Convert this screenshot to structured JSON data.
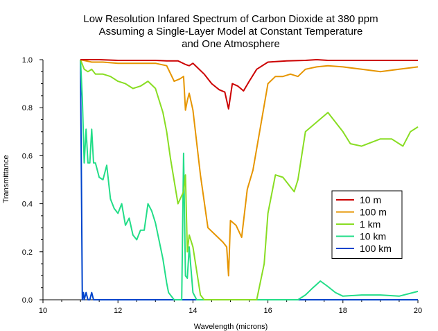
{
  "chart_data": {
    "type": "line",
    "title": [
      "Low Resolution Infared Spectrum of Carbon Dioxide at 380 ppm",
      "Assuming a Single-Layer Model at Constant Temperature",
      "and One Atmosphere"
    ],
    "xlabel": "Wavelength (microns)",
    "ylabel": "Transmittance",
    "xlim": [
      10,
      20
    ],
    "ylim": [
      0,
      1
    ],
    "xticks": [
      10,
      12,
      14,
      16,
      18,
      20
    ],
    "xtick_labels": [
      "10",
      "12",
      "14",
      "16",
      "18",
      "20"
    ],
    "yticks": [
      0,
      0.2,
      0.4,
      0.6,
      0.8,
      1.0
    ],
    "ytick_labels": [
      "0.0",
      "0.2",
      "0.4",
      "0.6",
      "0.8",
      "1.0"
    ],
    "grid": false,
    "legend_position": "right-middle",
    "series": [
      {
        "name": "10 m",
        "color": "#cc0000",
        "x": [
          11.0,
          11.5,
          12.0,
          12.5,
          13.0,
          13.3,
          13.6,
          13.8,
          13.9,
          14.0,
          14.1,
          14.3,
          14.5,
          14.7,
          14.85,
          14.95,
          15.05,
          15.2,
          15.35,
          15.5,
          15.7,
          16.0,
          16.5,
          17.0,
          17.3,
          17.6,
          18.0,
          18.5,
          19.0,
          19.5,
          20.0
        ],
        "y": [
          1.0,
          1.0,
          0.997,
          0.997,
          0.997,
          0.995,
          0.995,
          0.98,
          0.975,
          0.985,
          0.97,
          0.94,
          0.9,
          0.875,
          0.865,
          0.795,
          0.9,
          0.89,
          0.87,
          0.91,
          0.96,
          0.99,
          0.995,
          0.997,
          1.0,
          0.997,
          0.997,
          0.997,
          0.997,
          0.997,
          0.997
        ]
      },
      {
        "name": "100 m",
        "color": "#e69500",
        "x": [
          11.0,
          11.3,
          11.6,
          12.0,
          12.5,
          13.0,
          13.3,
          13.5,
          13.65,
          13.75,
          13.8,
          13.85,
          13.9,
          14.0,
          14.2,
          14.4,
          14.6,
          14.8,
          14.9,
          14.95,
          15.0,
          15.15,
          15.3,
          15.45,
          15.6,
          15.8,
          16.0,
          16.2,
          16.4,
          16.6,
          16.8,
          17.0,
          17.3,
          17.6,
          18.0,
          18.5,
          19.0,
          19.5,
          20.0
        ],
        "y": [
          1.0,
          0.99,
          0.99,
          0.985,
          0.985,
          0.985,
          0.975,
          0.91,
          0.92,
          0.93,
          0.79,
          0.83,
          0.86,
          0.79,
          0.52,
          0.3,
          0.27,
          0.24,
          0.22,
          0.1,
          0.33,
          0.31,
          0.26,
          0.46,
          0.54,
          0.72,
          0.9,
          0.93,
          0.93,
          0.94,
          0.93,
          0.96,
          0.97,
          0.975,
          0.97,
          0.96,
          0.95,
          0.96,
          0.97
        ]
      },
      {
        "name": "1 km",
        "color": "#88dd22",
        "x": [
          11.0,
          11.1,
          11.2,
          11.3,
          11.4,
          11.6,
          11.8,
          12.0,
          12.2,
          12.4,
          12.6,
          12.8,
          13.0,
          13.2,
          13.3,
          13.4,
          13.6,
          13.75,
          13.8,
          13.85,
          13.9,
          14.0,
          14.1,
          14.2,
          14.3,
          14.5,
          15.0,
          15.5,
          15.7,
          15.9,
          16.0,
          16.2,
          16.4,
          16.6,
          16.7,
          16.8,
          17.0,
          17.3,
          17.6,
          17.8,
          18.0,
          18.2,
          18.5,
          19.0,
          19.3,
          19.6,
          19.8,
          20.0
        ],
        "y": [
          1.0,
          0.96,
          0.95,
          0.96,
          0.94,
          0.94,
          0.93,
          0.91,
          0.9,
          0.88,
          0.89,
          0.91,
          0.88,
          0.78,
          0.7,
          0.59,
          0.4,
          0.45,
          0.52,
          0.2,
          0.27,
          0.22,
          0.12,
          0.02,
          0.0,
          0.0,
          0.0,
          0.0,
          0.0,
          0.15,
          0.36,
          0.52,
          0.51,
          0.47,
          0.45,
          0.5,
          0.7,
          0.74,
          0.78,
          0.74,
          0.7,
          0.65,
          0.64,
          0.67,
          0.67,
          0.64,
          0.7,
          0.72
        ]
      },
      {
        "name": "10 km",
        "color": "#22dd88",
        "x": [
          11.0,
          11.05,
          11.1,
          11.15,
          11.2,
          11.25,
          11.3,
          11.35,
          11.4,
          11.5,
          11.6,
          11.7,
          11.8,
          11.9,
          12.0,
          12.1,
          12.2,
          12.3,
          12.4,
          12.5,
          12.6,
          12.7,
          12.8,
          12.9,
          13.0,
          13.2,
          13.3,
          13.35,
          13.5,
          13.6,
          13.7,
          13.75,
          13.8,
          13.85,
          13.9,
          14.0,
          14.1,
          14.5,
          16.5,
          16.8,
          17.0,
          17.2,
          17.4,
          17.6,
          17.8,
          18.0,
          18.5,
          19.0,
          19.5,
          20.0
        ],
        "y": [
          1.0,
          0.84,
          0.57,
          0.71,
          0.57,
          0.57,
          0.71,
          0.57,
          0.57,
          0.51,
          0.5,
          0.56,
          0.42,
          0.38,
          0.36,
          0.4,
          0.31,
          0.34,
          0.27,
          0.25,
          0.29,
          0.29,
          0.4,
          0.37,
          0.32,
          0.17,
          0.07,
          0.03,
          0.0,
          0.0,
          0.0,
          0.61,
          0.1,
          0.09,
          0.22,
          0.03,
          0.0,
          0.0,
          0.0,
          0.0,
          0.02,
          0.05,
          0.078,
          0.055,
          0.03,
          0.015,
          0.02,
          0.02,
          0.015,
          0.035
        ]
      },
      {
        "name": "100 km",
        "color": "#0044cc",
        "x": [
          11.0,
          11.02,
          11.05,
          11.08,
          11.1,
          11.15,
          11.2,
          11.25,
          11.3,
          11.35,
          11.4,
          11.6,
          12.0,
          14.0,
          16.0,
          18.0,
          20.0
        ],
        "y": [
          1.0,
          0.6,
          0.0,
          0.03,
          0.0,
          0.03,
          0.0,
          0.0,
          0.03,
          0.0,
          0.0,
          0.0,
          0.0,
          0.0,
          0.0,
          0.0,
          0.0
        ]
      }
    ]
  }
}
